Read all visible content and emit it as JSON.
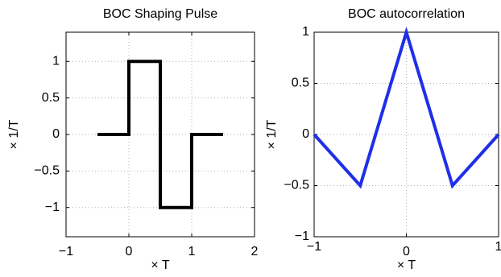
{
  "chart_data": [
    {
      "type": "line",
      "title": "BOC Shaping Pulse",
      "xlabel": "× T",
      "ylabel": "× 1/T",
      "xlim": [
        -1,
        2
      ],
      "ylim": [
        -1.4,
        1.4
      ],
      "xticks": [
        -1,
        0,
        1,
        2
      ],
      "xtick_labels": [
        "−1",
        "0",
        "1",
        "2"
      ],
      "yticks": [
        1,
        0.5,
        0,
        -0.5,
        -1
      ],
      "ytick_labels": [
        "1",
        "0.5",
        "0",
        "−0.5",
        "−1"
      ],
      "grid": true,
      "line_color": "#000000",
      "series": [
        {
          "x": [
            -0.5,
            0,
            0,
            0.5,
            0.5,
            1,
            1,
            1.5
          ],
          "y": [
            0,
            0,
            1,
            1,
            -1,
            -1,
            0,
            0
          ]
        }
      ]
    },
    {
      "type": "line",
      "title": "BOC autocorrelation",
      "xlabel": "× T",
      "ylabel": "× 1/T",
      "xlim": [
        -1,
        1
      ],
      "ylim": [
        -1,
        1
      ],
      "xticks": [
        -1,
        0,
        1
      ],
      "xtick_labels": [
        "−1",
        "0",
        "1"
      ],
      "yticks": [
        1,
        0.5,
        0,
        -0.5,
        -1
      ],
      "ytick_labels": [
        "1",
        "0.5",
        "0",
        "−0.5",
        "−1"
      ],
      "grid": true,
      "line_color": "#1f2fe8",
      "series": [
        {
          "x": [
            -1,
            -0.5,
            0,
            0.5,
            1
          ],
          "y": [
            0,
            -0.5,
            1,
            -0.5,
            0
          ]
        }
      ]
    }
  ]
}
